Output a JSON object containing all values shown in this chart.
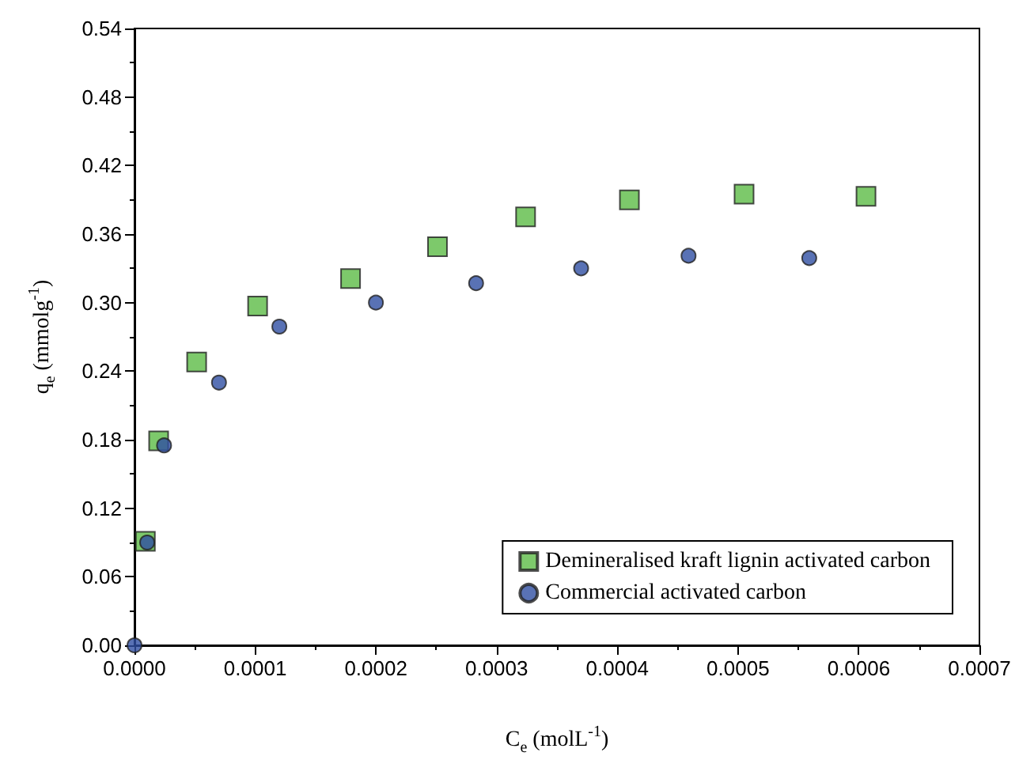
{
  "chart_data": {
    "type": "scatter",
    "xlabel": "C$_{e}$ (molL$^{-1}$)",
    "ylabel": "q$_{e}$ (mmolg$^{-1}$)",
    "xlim": [
      0,
      0.0007
    ],
    "ylim": [
      0,
      0.54
    ],
    "xticks": [
      {
        "value": 0,
        "label": "0.0000"
      },
      {
        "value": 0.0001,
        "label": "0.0001"
      },
      {
        "value": 0.0002,
        "label": "0.0002"
      },
      {
        "value": 0.0003,
        "label": "0.0003"
      },
      {
        "value": 0.0004,
        "label": "0.0004"
      },
      {
        "value": 0.0005,
        "label": "0.0005"
      },
      {
        "value": 0.0006,
        "label": "0.0006"
      },
      {
        "value": 0.0007,
        "label": "0.0007"
      }
    ],
    "yticks": [
      {
        "value": 0,
        "label": "0.00"
      },
      0.06,
      0.12,
      0.18,
      {
        "value": 0.24,
        "label": "0.24"
      },
      {
        "value": 0.3,
        "label": "0.30"
      },
      0.36,
      0.42,
      0.48,
      0.54
    ],
    "legend": "bottom right",
    "grid": false,
    "series": [
      {
        "name": "Demineralised kraft lignin activated carbon",
        "color": "#5dbb46",
        "marker": "square",
        "x": [
          9e-06,
          2e-05,
          5.15e-05,
          0.000102,
          0.000179,
          0.000251,
          0.000324,
          0.00041,
          0.000505,
          0.000606
        ],
        "values": [
          0.091,
          0.179,
          0.248,
          0.297,
          0.321,
          0.349,
          0.375,
          0.39,
          0.395,
          0.393
        ]
      },
      {
        "name": "Commercial activated carbon",
        "color": "#2f4fa3",
        "marker": "circle",
        "x": [
          0,
          1.05e-05,
          2.45e-05,
          7e-05,
          0.00012,
          0.0002,
          0.000283,
          0.00037,
          0.000459,
          0.000559
        ],
        "values": [
          0,
          0.09,
          0.175,
          0.23,
          0.279,
          0.3,
          0.317,
          0.33,
          0.341,
          0.339
        ]
      }
    ]
  }
}
